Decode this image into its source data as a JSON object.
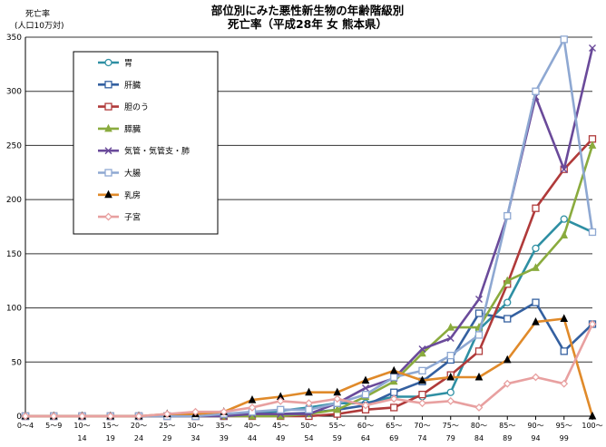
{
  "chart_data": {
    "type": "line",
    "title_line1": "部位別にみた悪性新生物の年齢階級別",
    "title_line2": "死亡率（平成28年 女 熊本県）",
    "ylabel_line1": "死亡率",
    "ylabel_line2": "(人口10万対)",
    "ylim": [
      0,
      350
    ],
    "yticks": [
      0,
      50,
      100,
      150,
      200,
      250,
      300,
      350
    ],
    "grid": true,
    "legend_position": "top-left",
    "categories_top": [
      "0〜4",
      "5〜9",
      "10〜",
      "15〜",
      "20〜",
      "25〜",
      "30〜",
      "35〜",
      "40〜",
      "45〜",
      "50〜",
      "55〜",
      "60〜",
      "65〜",
      "70〜",
      "75〜",
      "80〜",
      "85〜",
      "90〜",
      "95〜",
      "100〜"
    ],
    "categories_bottom": [
      "",
      "",
      "14",
      "19",
      "24",
      "29",
      "34",
      "39",
      "44",
      "49",
      "54",
      "59",
      "64",
      "69",
      "74",
      "79",
      "84",
      "89",
      "94",
      "99",
      ""
    ],
    "series": [
      {
        "name": "胃",
        "color": "#2e8fa3",
        "marker": "circle",
        "values": [
          0,
          0,
          0,
          0,
          0,
          0,
          0,
          0,
          2,
          5,
          8,
          12,
          12,
          18,
          18,
          22,
          80,
          105,
          155,
          182,
          170
        ]
      },
      {
        "name": "肝臓",
        "color": "#3460a0",
        "marker": "square",
        "values": [
          0,
          0,
          0,
          0,
          0,
          0,
          0,
          0,
          2,
          2,
          3,
          6,
          10,
          22,
          32,
          52,
          95,
          90,
          105,
          60,
          85
        ]
      },
      {
        "name": "胆のう",
        "color": "#b03a3a",
        "marker": "square",
        "values": [
          0,
          0,
          0,
          0,
          0,
          0,
          0,
          0,
          0,
          0,
          0,
          2,
          6,
          8,
          20,
          38,
          60,
          122,
          192,
          228,
          256
        ]
      },
      {
        "name": "膵臓",
        "color": "#8aab3e",
        "marker": "triangle-open",
        "values": [
          0,
          0,
          0,
          0,
          0,
          0,
          0,
          0,
          0,
          0,
          2,
          6,
          18,
          32,
          58,
          82,
          82,
          125,
          137,
          167,
          250
        ]
      },
      {
        "name": "気管・気管支・肺",
        "color": "#6a4a9a",
        "marker": "x",
        "values": [
          0,
          0,
          0,
          0,
          0,
          0,
          0,
          0,
          2,
          2,
          2,
          12,
          26,
          35,
          62,
          72,
          108,
          185,
          295,
          228,
          340
        ]
      },
      {
        "name": "大腸",
        "color": "#8ea8d2",
        "marker": "square",
        "values": [
          0,
          0,
          0,
          0,
          0,
          0,
          0,
          2,
          4,
          6,
          6,
          12,
          20,
          36,
          42,
          56,
          75,
          185,
          300,
          348,
          170
        ]
      },
      {
        "name": "乳房",
        "color": "#e08a2a",
        "marker": "triangle-filled",
        "values": [
          0,
          0,
          0,
          0,
          0,
          2,
          2,
          4,
          15,
          18,
          22,
          22,
          33,
          42,
          33,
          36,
          36,
          52,
          87,
          90,
          0
        ]
      },
      {
        "name": "子宮",
        "color": "#e8a0a0",
        "marker": "diamond",
        "values": [
          0,
          0,
          0,
          0,
          0,
          2,
          4,
          4,
          8,
          14,
          12,
          16,
          10,
          16,
          12,
          14,
          8,
          30,
          36,
          30,
          85
        ]
      }
    ]
  }
}
